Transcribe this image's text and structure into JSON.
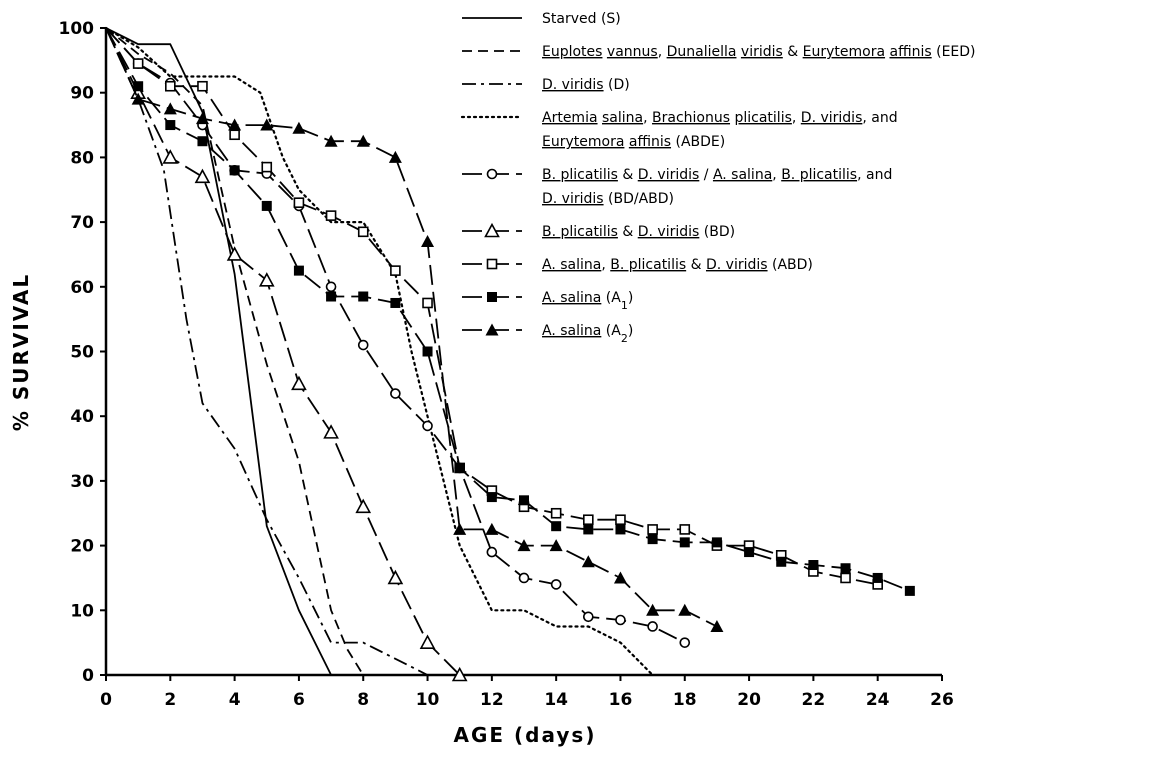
{
  "chart_data": {
    "type": "line",
    "xlabel": "AGE (days)",
    "ylabel": "% SURVIVAL",
    "xlim": [
      0,
      26
    ],
    "ylim": [
      0,
      100
    ],
    "x_ticks": [
      "0",
      "2",
      "4",
      "6",
      "8",
      "10",
      "12",
      "14",
      "16",
      "18",
      "20",
      "22",
      "24",
      "26"
    ],
    "y_ticks": [
      "0",
      "10",
      "20",
      "30",
      "40",
      "50",
      "60",
      "70",
      "80",
      "90",
      "100"
    ],
    "grid": false,
    "legend_position": "top-right",
    "series": [
      {
        "name": "Starved (S)",
        "line_style": "solid",
        "marker": "none",
        "legend_lines": [
          [
            {
              "t": "Starved (S)",
              "u": false
            }
          ]
        ],
        "points": [
          [
            0,
            100
          ],
          [
            1,
            97.5
          ],
          [
            2,
            97.5
          ],
          [
            3,
            87
          ],
          [
            4,
            62
          ],
          [
            5,
            23
          ],
          [
            6,
            10
          ],
          [
            7,
            0
          ]
        ]
      },
      {
        "name": "Euplotes vannus, Dunaliella viridis & Eurytemora affinis (EED)",
        "line_style": "dashed",
        "marker": "none",
        "legend_lines": [
          [
            {
              "t": "Euplotes",
              "u": true
            },
            {
              "t": " ",
              "u": false
            },
            {
              "t": "vannus",
              "u": true
            },
            {
              "t": ", ",
              "u": false
            },
            {
              "t": "Dunaliella",
              "u": true
            },
            {
              "t": " ",
              "u": false
            },
            {
              "t": "viridis",
              "u": true
            },
            {
              "t": " & ",
              "u": false
            },
            {
              "t": "Eurytemora",
              "u": true
            },
            {
              "t": " ",
              "u": false
            },
            {
              "t": "affinis",
              "u": true
            },
            {
              "t": " (EED)",
              "u": false
            }
          ]
        ],
        "points": [
          [
            0,
            100
          ],
          [
            1,
            96
          ],
          [
            2,
            93
          ],
          [
            3,
            88
          ],
          [
            4,
            66
          ],
          [
            5,
            48
          ],
          [
            6,
            33
          ],
          [
            7,
            10
          ],
          [
            7.5,
            4
          ],
          [
            8,
            0
          ]
        ]
      },
      {
        "name": "D. viridis (D)",
        "line_style": "dashdot",
        "marker": "none",
        "legend_lines": [
          [
            {
              "t": "D. viridis",
              "u": true
            },
            {
              "t": "   (D)",
              "u": false
            }
          ]
        ],
        "points": [
          [
            0,
            100
          ],
          [
            1,
            89
          ],
          [
            1.8,
            78
          ],
          [
            2.5,
            55
          ],
          [
            3,
            42
          ],
          [
            4,
            35
          ],
          [
            5,
            24
          ],
          [
            6,
            15
          ],
          [
            7,
            5
          ],
          [
            8,
            5
          ],
          [
            9,
            2.5
          ],
          [
            10,
            0
          ]
        ]
      },
      {
        "name": "Artemia salina, Brachionus plicatilis, D. viridis, and Eurytemora affinis (ABDE)",
        "line_style": "dotted",
        "marker": "none",
        "legend_lines": [
          [
            {
              "t": "Artemia",
              "u": true
            },
            {
              "t": " ",
              "u": false
            },
            {
              "t": "salina",
              "u": true
            },
            {
              "t": ", ",
              "u": false
            },
            {
              "t": "Brachionus",
              "u": true
            },
            {
              "t": " ",
              "u": false
            },
            {
              "t": "plicatilis",
              "u": true
            },
            {
              "t": ", ",
              "u": false
            },
            {
              "t": "D. viridis",
              "u": true
            },
            {
              "t": ", and",
              "u": false
            }
          ],
          [
            {
              "t": "Eurytemora",
              "u": true
            },
            {
              "t": " ",
              "u": false
            },
            {
              "t": "affinis",
              "u": true
            },
            {
              "t": " (ABDE)",
              "u": false
            }
          ]
        ],
        "points": [
          [
            0,
            100
          ],
          [
            1,
            97
          ],
          [
            2,
            92.5
          ],
          [
            3,
            92.5
          ],
          [
            4,
            92.5
          ],
          [
            4.8,
            90
          ],
          [
            5.5,
            80
          ],
          [
            6,
            75
          ],
          [
            7,
            70
          ],
          [
            8,
            70
          ],
          [
            9,
            62
          ],
          [
            9.5,
            50
          ],
          [
            10,
            40
          ],
          [
            11,
            20
          ],
          [
            12,
            10
          ],
          [
            13,
            10
          ],
          [
            14,
            7.5
          ],
          [
            15,
            7.5
          ],
          [
            16,
            5
          ],
          [
            17,
            0
          ]
        ]
      },
      {
        "name": "B. plicatilis & D. viridis / A. salina, B. plicatilis, and D. viridis (BD/ABD)",
        "line_style": "longdash",
        "marker": "open-circle",
        "legend_lines": [
          [
            {
              "t": "B. plicatilis",
              "u": true
            },
            {
              "t": " & ",
              "u": false
            },
            {
              "t": "D. viridis",
              "u": true
            },
            {
              "t": " / ",
              "u": false
            },
            {
              "t": "A. salina",
              "u": true
            },
            {
              "t": ", ",
              "u": false
            },
            {
              "t": "B. plicatilis",
              "u": true
            },
            {
              "t": ", and",
              "u": false
            }
          ],
          [
            {
              "t": "D. viridis",
              "u": true
            },
            {
              "t": " (BD/ABD)",
              "u": false
            }
          ]
        ],
        "points": [
          [
            0,
            100
          ],
          [
            1,
            94.5
          ],
          [
            2,
            91.5
          ],
          [
            3,
            85
          ],
          [
            4,
            78
          ],
          [
            5,
            77.5
          ],
          [
            6,
            72.5
          ],
          [
            7,
            60
          ],
          [
            8,
            51
          ],
          [
            9,
            43.5
          ],
          [
            10,
            38.5
          ],
          [
            11,
            32
          ],
          [
            12,
            19
          ],
          [
            13,
            15
          ],
          [
            14,
            14
          ],
          [
            15,
            9
          ],
          [
            16,
            8.5
          ],
          [
            17,
            7.5
          ],
          [
            18,
            5
          ]
        ]
      },
      {
        "name": "B. plicatilis & D. viridis (BD)",
        "line_style": "longdash",
        "marker": "open-triangle",
        "legend_lines": [
          [
            {
              "t": "B. plicatilis",
              "u": true
            },
            {
              "t": " & ",
              "u": false
            },
            {
              "t": "D. viridis",
              "u": true
            },
            {
              "t": " (BD)",
              "u": false
            }
          ]
        ],
        "points": [
          [
            0,
            100
          ],
          [
            1,
            90
          ],
          [
            2,
            80
          ],
          [
            3,
            77
          ],
          [
            4,
            65
          ],
          [
            5,
            61
          ],
          [
            6,
            45
          ],
          [
            7,
            37.5
          ],
          [
            8,
            26
          ],
          [
            9,
            15
          ],
          [
            10,
            5
          ],
          [
            11,
            0
          ]
        ]
      },
      {
        "name": "A. salina, B. plicatilis & D. viridis (ABD)",
        "line_style": "longdash",
        "marker": "open-square",
        "legend_lines": [
          [
            {
              "t": "A. salina",
              "u": true
            },
            {
              "t": ", ",
              "u": false
            },
            {
              "t": "B. plicatilis",
              "u": true
            },
            {
              "t": " & ",
              "u": false
            },
            {
              "t": "D. viridis",
              "u": true
            },
            {
              "t": " (ABD)",
              "u": false
            }
          ]
        ],
        "points": [
          [
            0,
            100
          ],
          [
            1,
            94.5
          ],
          [
            2,
            91
          ],
          [
            3,
            91
          ],
          [
            4,
            83.5
          ],
          [
            5,
            78.5
          ],
          [
            6,
            73
          ],
          [
            7,
            71
          ],
          [
            8,
            68.5
          ],
          [
            9,
            62.5
          ],
          [
            10,
            57.5
          ],
          [
            11,
            32
          ],
          [
            12,
            28.5
          ],
          [
            13,
            26
          ],
          [
            14,
            25
          ],
          [
            15,
            24
          ],
          [
            16,
            24
          ],
          [
            17,
            22.5
          ],
          [
            18,
            22.5
          ],
          [
            19,
            20
          ],
          [
            20,
            20
          ],
          [
            21,
            18.5
          ],
          [
            22,
            16
          ],
          [
            23,
            15
          ],
          [
            24,
            14
          ]
        ]
      },
      {
        "name": "A. salina (A1)",
        "line_style": "longdash",
        "marker": "filled-square",
        "legend_lines": [
          [
            {
              "t": "A. salina",
              "u": true
            },
            {
              "t": " (A",
              "u": false
            },
            {
              "t": "1",
              "u": false,
              "sub": true
            },
            {
              "t": ")",
              "u": false
            }
          ]
        ],
        "points": [
          [
            0,
            100
          ],
          [
            1,
            91
          ],
          [
            2,
            85
          ],
          [
            3,
            82.5
          ],
          [
            4,
            78
          ],
          [
            5,
            72.5
          ],
          [
            6,
            62.5
          ],
          [
            7,
            58.5
          ],
          [
            8,
            58.5
          ],
          [
            9,
            57.5
          ],
          [
            10,
            50
          ],
          [
            11,
            32
          ],
          [
            12,
            27.5
          ],
          [
            13,
            27
          ],
          [
            14,
            23
          ],
          [
            15,
            22.5
          ],
          [
            16,
            22.5
          ],
          [
            17,
            21
          ],
          [
            18,
            20.5
          ],
          [
            19,
            20.5
          ],
          [
            20,
            19
          ],
          [
            21,
            17.5
          ],
          [
            22,
            17
          ],
          [
            23,
            16.5
          ],
          [
            24,
            15
          ],
          [
            25,
            13
          ]
        ]
      },
      {
        "name": "A. salina (A2)",
        "line_style": "longdash",
        "marker": "filled-triangle",
        "legend_lines": [
          [
            {
              "t": "A. salina",
              "u": true
            },
            {
              "t": " (A",
              "u": false
            },
            {
              "t": "2",
              "u": false,
              "sub": true
            },
            {
              "t": ")",
              "u": false
            }
          ]
        ],
        "points": [
          [
            0,
            100
          ],
          [
            1,
            89
          ],
          [
            2,
            87.5
          ],
          [
            3,
            86
          ],
          [
            4,
            85
          ],
          [
            5,
            85
          ],
          [
            6,
            84.5
          ],
          [
            7,
            82.5
          ],
          [
            8,
            82.5
          ],
          [
            9,
            80
          ],
          [
            10,
            67
          ],
          [
            11,
            22.5
          ],
          [
            12,
            22.5
          ],
          [
            13,
            20
          ],
          [
            14,
            20
          ],
          [
            15,
            17.5
          ],
          [
            16,
            15
          ],
          [
            17,
            10
          ],
          [
            18,
            10
          ],
          [
            19,
            7.5
          ]
        ]
      }
    ]
  }
}
